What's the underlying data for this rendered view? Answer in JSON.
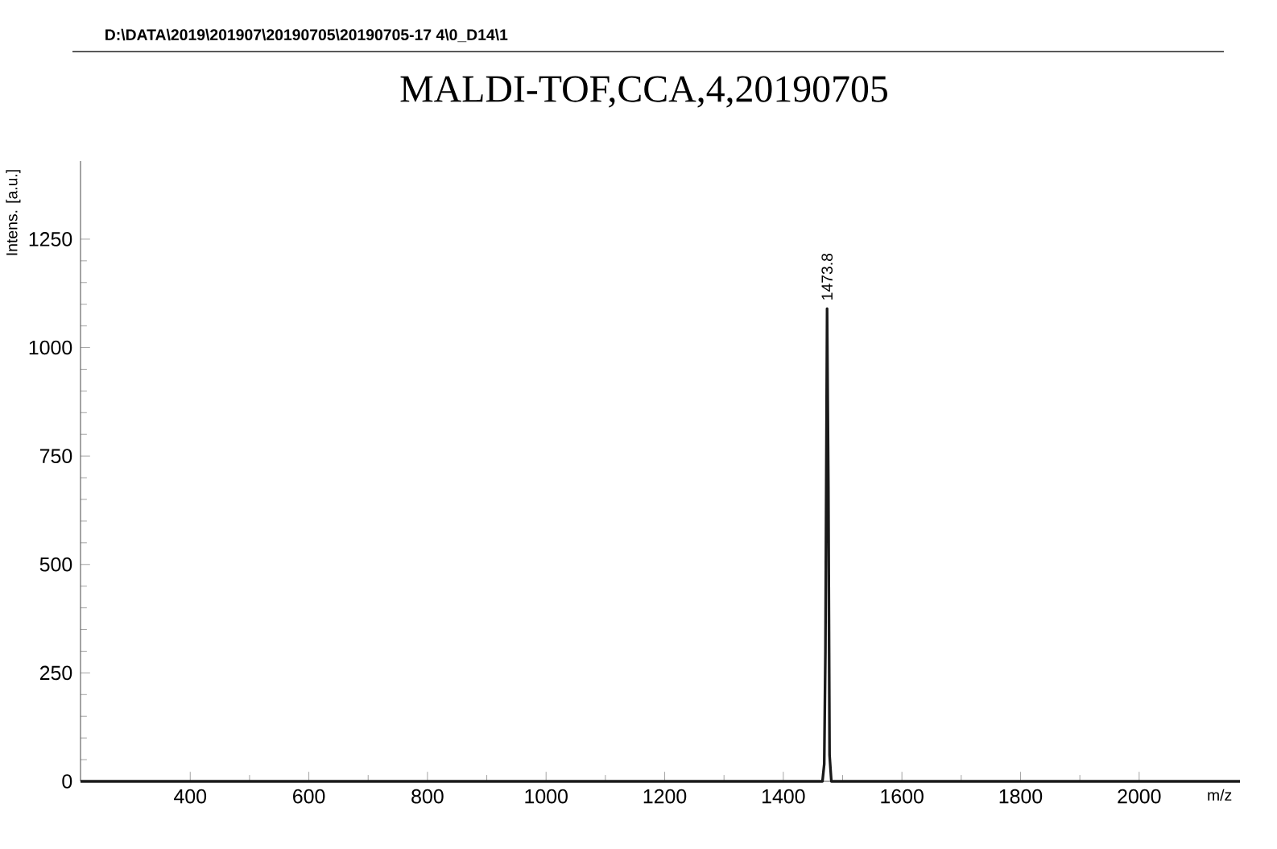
{
  "chart_data": {
    "type": "line",
    "title": "MALDI-TOF,CCA,4,20190705",
    "xlabel": "m/z",
    "ylabel": "Intens. [a.u.]",
    "annotations": [
      "D:\\DATA\\2019\\201907\\20190705\\20190705-17 4\\0_D14\\1",
      {
        "text": "1473.8",
        "x": 1473.8,
        "y": 1090
      }
    ],
    "x": [
      215,
      1466,
      1469,
      1471,
      1473.8,
      1476,
      1478,
      1481,
      2170
    ],
    "series": [
      {
        "color": "#1a1a1a",
        "values": [
          0,
          0,
          40,
          300,
          1090,
          680,
          60,
          0,
          0
        ]
      }
    ],
    "xlim": [
      215,
      2170
    ],
    "ylim": [
      0,
      1430
    ],
    "xticks": [
      400,
      600,
      800,
      1000,
      1200,
      1400,
      1600,
      1800,
      2000
    ],
    "yticks": [
      0,
      250,
      500,
      750,
      1000,
      1250
    ],
    "marker": "none",
    "line_style": "solid"
  }
}
